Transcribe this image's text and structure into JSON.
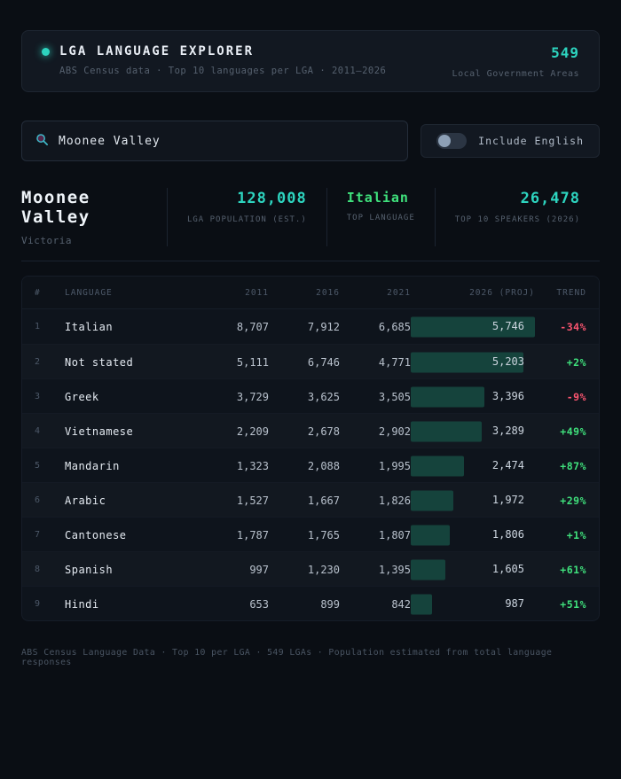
{
  "header": {
    "title": "LGA LANGUAGE EXPLORER",
    "subtitle": "ABS Census data · Top 10 languages per LGA · 2011–2026",
    "count": "549",
    "count_label": "Local Government Areas"
  },
  "search": {
    "value": "Moonee Valley"
  },
  "toggle": {
    "label": "Include English",
    "state": "off"
  },
  "summary": {
    "lga_name": "Moonee Valley",
    "state": "Victoria",
    "population": "128,008",
    "population_label": "LGA POPULATION (EST.)",
    "top_language": "Italian",
    "top_language_label": "TOP LANGUAGE",
    "top10_speakers": "26,478",
    "top10_label": "TOP 10 SPEAKERS (2026)"
  },
  "table": {
    "columns": [
      "#",
      "LANGUAGE",
      "2011",
      "2016",
      "2021",
      "2026 (PROJ)",
      "TREND"
    ],
    "rows": [
      {
        "rank": "1",
        "language": "Italian",
        "y2011": "8,707",
        "y2016": "7,912",
        "y2021": "6,685",
        "y2026": "5,746",
        "trend": "-34%",
        "bar_pct": 100
      },
      {
        "rank": "2",
        "language": "Not stated",
        "y2011": "5,111",
        "y2016": "6,746",
        "y2021": "4,771",
        "y2026": "5,203",
        "trend": "+2%",
        "bar_pct": 90.6
      },
      {
        "rank": "3",
        "language": "Greek",
        "y2011": "3,729",
        "y2016": "3,625",
        "y2021": "3,505",
        "y2026": "3,396",
        "trend": "-9%",
        "bar_pct": 59.1
      },
      {
        "rank": "4",
        "language": "Vietnamese",
        "y2011": "2,209",
        "y2016": "2,678",
        "y2021": "2,902",
        "y2026": "3,289",
        "trend": "+49%",
        "bar_pct": 57.2
      },
      {
        "rank": "5",
        "language": "Mandarin",
        "y2011": "1,323",
        "y2016": "2,088",
        "y2021": "1,995",
        "y2026": "2,474",
        "trend": "+87%",
        "bar_pct": 43.1
      },
      {
        "rank": "6",
        "language": "Arabic",
        "y2011": "1,527",
        "y2016": "1,667",
        "y2021": "1,826",
        "y2026": "1,972",
        "trend": "+29%",
        "bar_pct": 34.3
      },
      {
        "rank": "7",
        "language": "Cantonese",
        "y2011": "1,787",
        "y2016": "1,765",
        "y2021": "1,807",
        "y2026": "1,806",
        "trend": "+1%",
        "bar_pct": 31.4
      },
      {
        "rank": "8",
        "language": "Spanish",
        "y2011": "997",
        "y2016": "1,230",
        "y2021": "1,395",
        "y2026": "1,605",
        "trend": "+61%",
        "bar_pct": 27.9
      },
      {
        "rank": "9",
        "language": "Hindi",
        "y2011": "653",
        "y2016": "899",
        "y2021": "842",
        "y2026": "987",
        "trend": "+51%",
        "bar_pct": 17.2
      }
    ]
  },
  "footer": {
    "note": "ABS Census Language Data · Top 10 per LGA · 549 LGAs · Population estimated from total language responses"
  },
  "colors": {
    "accent_teal": "#2dd4bf",
    "positive_green": "#3fe07c",
    "negative_red": "#fb5570",
    "projection_bar": "#15433c"
  }
}
